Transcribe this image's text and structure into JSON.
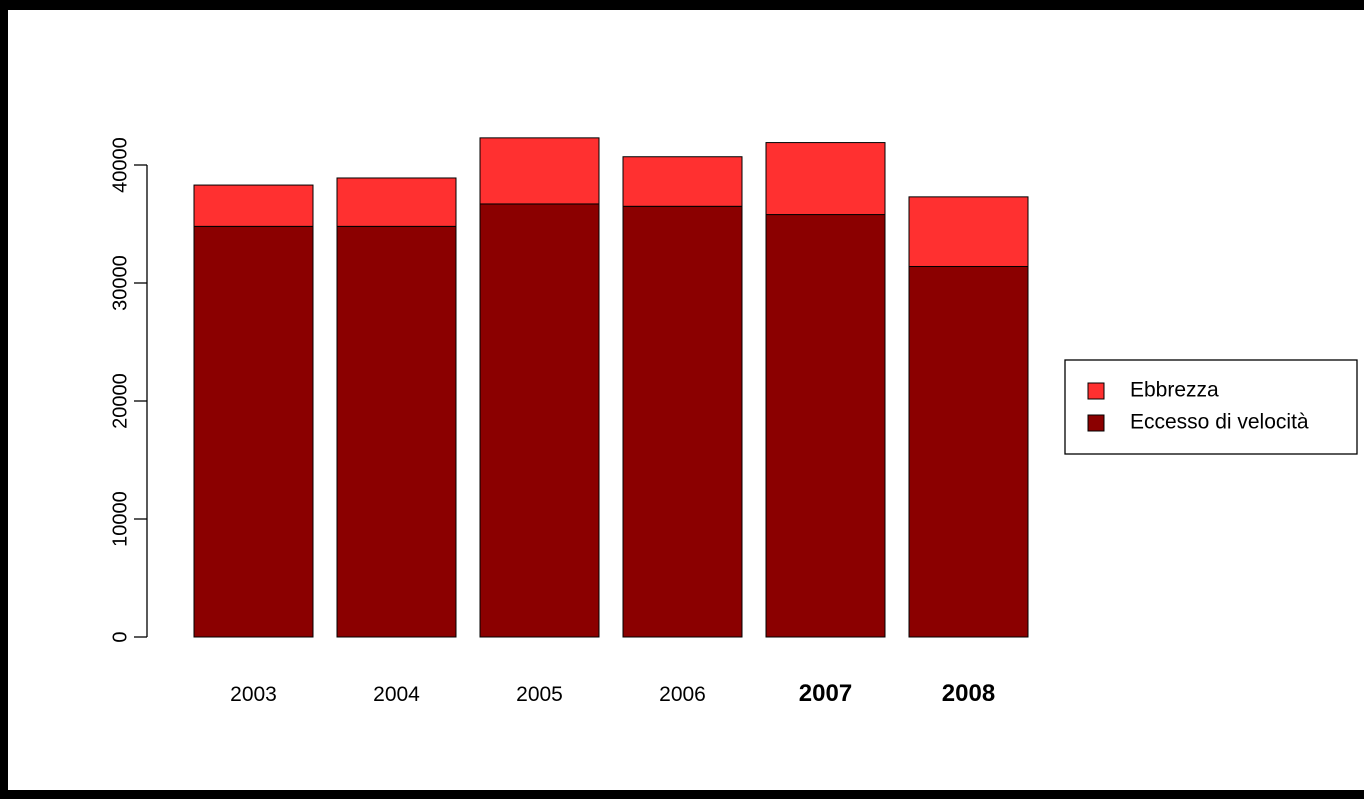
{
  "chart_data": {
    "type": "bar",
    "stacked": true,
    "categories": [
      "2003",
      "2004",
      "2005",
      "2006",
      "2007",
      "2008"
    ],
    "bold_categories": [
      "2007",
      "2008"
    ],
    "series": [
      {
        "name": "Eccesso di velocità",
        "values": [
          34800,
          34800,
          36700,
          36500,
          35800,
          31400
        ],
        "color": "#8b0000"
      },
      {
        "name": "Ebbrezza",
        "values": [
          3500,
          4100,
          5600,
          4200,
          6100,
          5900
        ],
        "color": "#ff3030"
      }
    ],
    "legend_order": [
      "Ebbrezza",
      "Eccesso di velocità"
    ],
    "yticks": [
      0,
      10000,
      20000,
      30000,
      40000
    ],
    "ylim": [
      0,
      42300
    ],
    "grid": false,
    "legend_position": "right"
  }
}
